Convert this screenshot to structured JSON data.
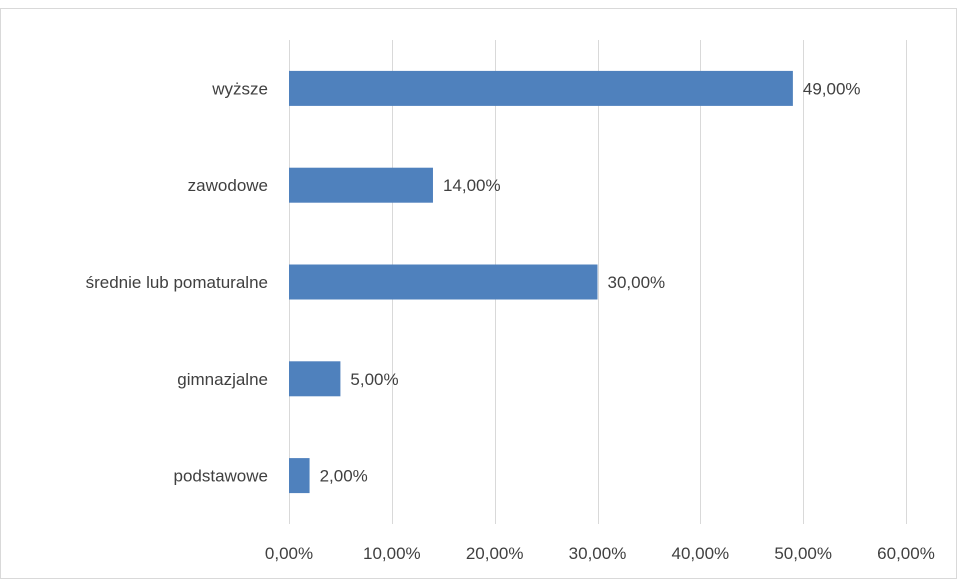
{
  "chart_data": {
    "type": "bar",
    "orientation": "horizontal",
    "categories": [
      "wyższe",
      "zawodowe",
      "średnie lub pomaturalne",
      "gimnazjalne",
      "podstawowe"
    ],
    "values": [
      49,
      14,
      30,
      5,
      2
    ],
    "data_labels": [
      "49,00%",
      "14,00%",
      "30,00%",
      "5,00%",
      "2,00%"
    ],
    "xlim": [
      0,
      60
    ],
    "xticks": [
      0,
      10,
      20,
      30,
      40,
      50,
      60
    ],
    "xtick_labels": [
      "0,00%",
      "10,00%",
      "20,00%",
      "30,00%",
      "40,00%",
      "50,00%",
      "60,00%"
    ],
    "title": "",
    "xlabel": "",
    "ylabel": "",
    "grid": true,
    "legend": "none",
    "colors": {
      "bar": "#4f81bd",
      "grid": "#d9d9d9",
      "text": "#404040"
    }
  }
}
